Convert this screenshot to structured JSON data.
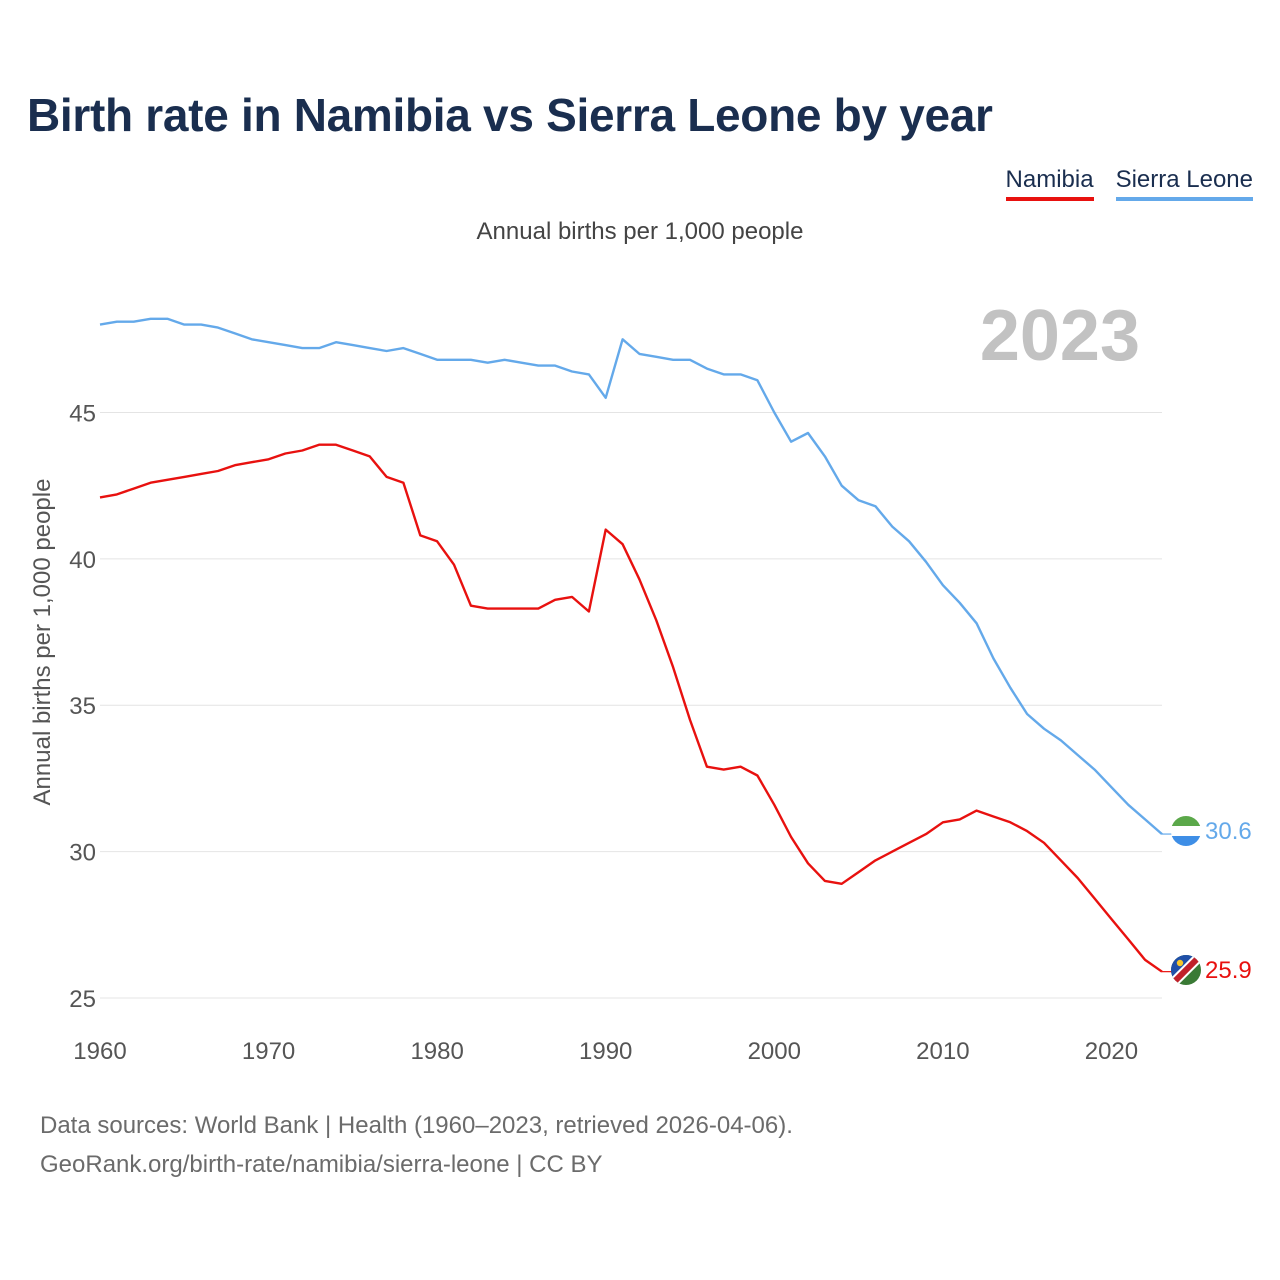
{
  "title": "Birth rate in Namibia vs Sierra Leone by year",
  "legend": [
    {
      "label": "Namibia",
      "color": "#e8110f"
    },
    {
      "label": "Sierra Leone",
      "color": "#64a9ea"
    }
  ],
  "subtitle": "Annual births per 1,000 people",
  "year_display": "2023",
  "source": {
    "line1": "Data sources: World Bank | Health (1960–2023, retrieved 2026-04-06).",
    "line2": "GeoRank.org/birth-rate/namibia/sierra-leone | CC BY"
  },
  "chart_data": {
    "type": "line",
    "ylabel": "Annual births per 1,000 people",
    "xlabel": "",
    "xlim": [
      1960,
      2023
    ],
    "ylim": [
      25,
      48.5
    ],
    "xticks": [
      1960,
      1970,
      1980,
      1990,
      2000,
      2010,
      2020
    ],
    "yticks": [
      25,
      30,
      35,
      40,
      45
    ],
    "grid": true,
    "x": [
      1960,
      1961,
      1962,
      1963,
      1964,
      1965,
      1966,
      1967,
      1968,
      1969,
      1970,
      1971,
      1972,
      1973,
      1974,
      1975,
      1976,
      1977,
      1978,
      1979,
      1980,
      1981,
      1982,
      1983,
      1984,
      1985,
      1986,
      1987,
      1988,
      1989,
      1990,
      1991,
      1992,
      1993,
      1994,
      1995,
      1996,
      1997,
      1998,
      1999,
      2000,
      2001,
      2002,
      2003,
      2004,
      2005,
      2006,
      2007,
      2008,
      2009,
      2010,
      2011,
      2012,
      2013,
      2014,
      2015,
      2016,
      2017,
      2018,
      2019,
      2020,
      2021,
      2022,
      2023
    ],
    "series": [
      {
        "name": "Namibia",
        "color": "#e8110f",
        "end_label": "25.9",
        "values": [
          42.1,
          42.2,
          42.4,
          42.6,
          42.7,
          42.8,
          42.9,
          43.0,
          43.2,
          43.3,
          43.4,
          43.6,
          43.7,
          43.9,
          43.9,
          43.7,
          43.5,
          42.8,
          42.6,
          40.8,
          40.6,
          39.8,
          38.4,
          38.3,
          38.3,
          38.3,
          38.3,
          38.6,
          38.7,
          38.2,
          41.0,
          40.5,
          39.3,
          37.9,
          36.3,
          34.5,
          32.9,
          32.8,
          32.9,
          32.6,
          31.6,
          30.5,
          29.6,
          29.0,
          28.9,
          29.3,
          29.7,
          30.0,
          30.3,
          30.6,
          31.0,
          31.1,
          31.4,
          31.2,
          31.0,
          30.7,
          30.3,
          29.7,
          29.1,
          28.4,
          27.7,
          27.0,
          26.3,
          25.9
        ]
      },
      {
        "name": "Sierra Leone",
        "color": "#64a9ea",
        "end_label": "30.6",
        "values": [
          48.0,
          48.1,
          48.1,
          48.2,
          48.2,
          48.0,
          48.0,
          47.9,
          47.7,
          47.5,
          47.4,
          47.3,
          47.2,
          47.2,
          47.4,
          47.3,
          47.2,
          47.1,
          47.2,
          47.0,
          46.8,
          46.8,
          46.8,
          46.7,
          46.8,
          46.7,
          46.6,
          46.6,
          46.4,
          46.3,
          45.5,
          47.5,
          47.0,
          46.9,
          46.8,
          46.8,
          46.5,
          46.3,
          46.3,
          46.1,
          45.0,
          44.0,
          44.3,
          43.5,
          42.5,
          42.0,
          41.8,
          41.1,
          40.6,
          39.9,
          39.1,
          38.5,
          37.8,
          36.6,
          35.6,
          34.7,
          34.2,
          33.8,
          33.3,
          32.8,
          32.2,
          31.6,
          31.1,
          30.6
        ]
      }
    ]
  }
}
